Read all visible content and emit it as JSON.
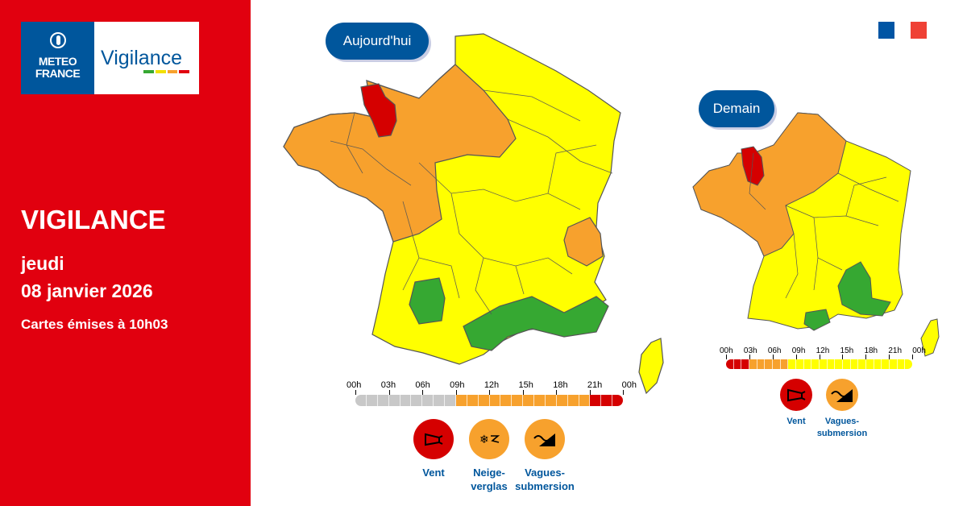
{
  "branding": {
    "meteo_line1": "METEO",
    "meteo_line2": "FRANCE",
    "vigilance_logo": "Vigilance",
    "logo_bar_colors": [
      "#36a832",
      "#f2e000",
      "#f7a12d",
      "#e1000f"
    ]
  },
  "header": {
    "title": "VIGILANCE",
    "day": "jeudi",
    "date": "08 janvier 2026",
    "issued": "Cartes émises à 10h03"
  },
  "colors": {
    "panel_red": "#e1000f",
    "navy": "#00569c",
    "vigilance_green": "#36a832",
    "vigilance_yellow": "#ffff00",
    "vigilance_orange": "#f7a12d",
    "vigilance_red": "#d50000",
    "timeline_gray": "#c8c8c8"
  },
  "flag_colors": [
    "#0055a4",
    "#ffffff",
    "#ef4135"
  ],
  "maps": {
    "today": {
      "label": "Aujourd'hui",
      "timeline": {
        "hours": [
          "00h",
          "03h",
          "06h",
          "09h",
          "12h",
          "15h",
          "18h",
          "21h",
          "00h"
        ],
        "segments": [
          "gray",
          "gray",
          "gray",
          "gray",
          "gray",
          "gray",
          "gray",
          "gray",
          "gray",
          "gray",
          "gray",
          "gray",
          "gray",
          "gray",
          "gray",
          "gray",
          "gray",
          "gray",
          "gray",
          "gray",
          "gray",
          "gray",
          "gray",
          "gray",
          "gray",
          "gray",
          "gray",
          "gray",
          "gray",
          "gray",
          "gray",
          "gray",
          "gray",
          "gray",
          "gray",
          "gray",
          "gray",
          "gray",
          "gray",
          "gray",
          "gray",
          "gray",
          "gray",
          "gray",
          "gray",
          "gray",
          "gray",
          "gray",
          "gray",
          "gray",
          "gray",
          "gray",
          "gray",
          "gray",
          "gray",
          "gray",
          "gray",
          "gray",
          "gray",
          "gray",
          "gray",
          "gray",
          "gray",
          "gray",
          "gray",
          "gray",
          "gray",
          "gray",
          "gray",
          "gray",
          "gray",
          "gray",
          "gray",
          "gray",
          "gray",
          "gray",
          "gray",
          "gray",
          "gray",
          "gray",
          "gray",
          "gray",
          "gray",
          "gray"
        ]
      },
      "hazards": [
        {
          "icon": "wind-icon",
          "label": "Vent",
          "level": "red"
        },
        {
          "icon": "snow-ice-icon",
          "label": "Neige-\nverglas",
          "level": "orange"
        },
        {
          "icon": "wave-submersion-icon",
          "label": "Vagues-\nsubmersion",
          "level": "orange"
        }
      ]
    },
    "tomorrow": {
      "label": "Demain",
      "timeline": {
        "hours": [
          "00h",
          "03h",
          "06h",
          "09h",
          "12h",
          "15h",
          "18h",
          "21h",
          "00h"
        ]
      },
      "hazards": [
        {
          "icon": "wind-icon",
          "label": "Vent",
          "level": "red"
        },
        {
          "icon": "wave-submersion-icon",
          "label": "Vagues-\nsubmersion",
          "level": "orange"
        }
      ]
    }
  }
}
